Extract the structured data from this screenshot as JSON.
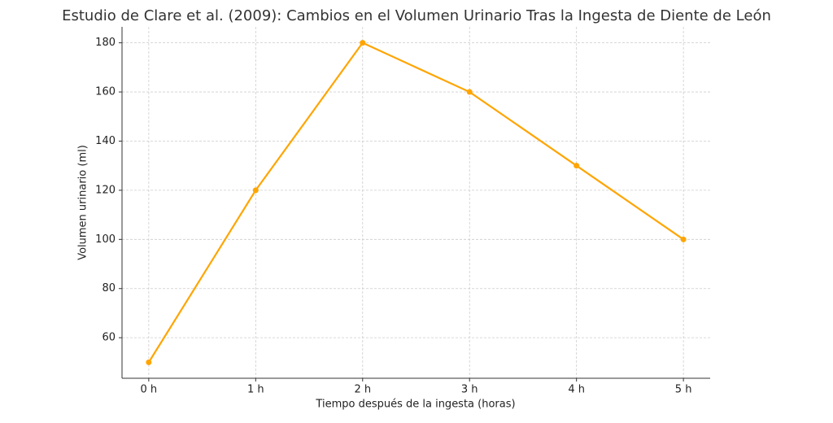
{
  "chart_data": {
    "type": "line",
    "title": "Estudio de Clare et al. (2009): Cambios en el Volumen Urinario Tras la Ingesta de Diente de León",
    "x_label": "Tiempo después de la ingesta (horas)",
    "y_label": "Volumen urinario (ml)",
    "categories": [
      "0 h",
      "1 h",
      "2 h",
      "3 h",
      "4 h",
      "5 h"
    ],
    "series": [
      {
        "name": "Volumen urinario",
        "color": "#ffa500",
        "values": [
          50,
          120,
          180,
          160,
          130,
          100
        ]
      }
    ],
    "ylim": [
      43.5,
      186.5
    ],
    "yticks": [
      60,
      80,
      100,
      120,
      140,
      160,
      180
    ],
    "grid": true
  }
}
